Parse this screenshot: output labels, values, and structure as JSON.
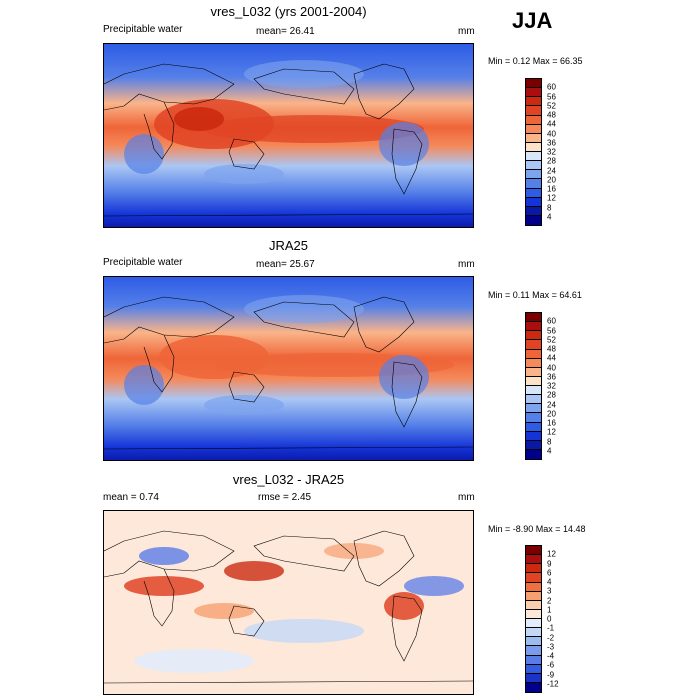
{
  "season": "JJA",
  "panels": [
    {
      "title": "vres_L032 (yrs 2001-2004)",
      "left_label": "Precipitable water",
      "center_label": "mean=  26.41",
      "units": "mm",
      "minmax": "Min =   0.12 Max =  66.35",
      "type": "field",
      "colorbar_levels": [
        "60",
        "56",
        "52",
        "48",
        "44",
        "40",
        "36",
        "32",
        "28",
        "24",
        "20",
        "16",
        "12",
        "8",
        "4"
      ]
    },
    {
      "title": "JRA25",
      "left_label": "Precipitable water",
      "center_label": "mean=  25.67",
      "units": "mm",
      "minmax": "Min =   0.11 Max =  64.61",
      "type": "field",
      "colorbar_levels": [
        "60",
        "56",
        "52",
        "48",
        "44",
        "40",
        "36",
        "32",
        "28",
        "24",
        "20",
        "16",
        "12",
        "8",
        "4"
      ]
    },
    {
      "title": "vres_L032 - JRA25",
      "left_label": "mean =   0.74",
      "center_label": "rmse =   2.45",
      "units": "mm",
      "minmax": "Min =  -8.90 Max =  14.48",
      "type": "diff",
      "colorbar_levels": [
        "12",
        "9",
        "6",
        "4",
        "3",
        "2",
        "1",
        "0",
        "-1",
        "-2",
        "-3",
        "-4",
        "-6",
        "-9",
        "-12"
      ]
    }
  ],
  "colors": {
    "field": [
      "#7a0000",
      "#aa0e0e",
      "#cc2a10",
      "#e04424",
      "#ee6538",
      "#f5895a",
      "#fab489",
      "#fde2c8",
      "#d8e6fa",
      "#aac6f4",
      "#7ea4ee",
      "#5580e8",
      "#2e5ce6",
      "#1534d8",
      "#0a18a6",
      "#00008a"
    ],
    "diff": [
      "#7a0000",
      "#aa0e0e",
      "#cc2a10",
      "#e04424",
      "#f07040",
      "#f7a070",
      "#fbcdb0",
      "#fde8da",
      "#e2ecfa",
      "#c4d8f6",
      "#9cbcf1",
      "#7a9cec",
      "#5a7ce7",
      "#345ce0",
      "#1a34c8",
      "#00008a"
    ]
  }
}
